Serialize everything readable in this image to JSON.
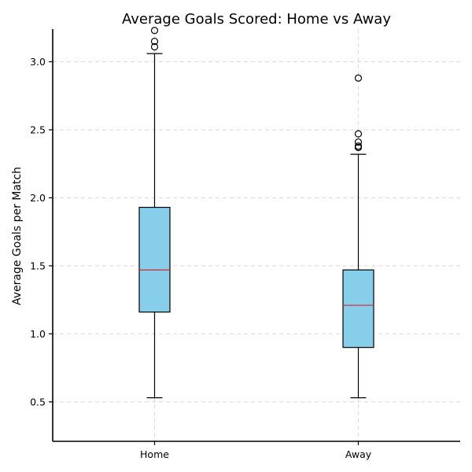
{
  "chart_data": {
    "type": "box",
    "title": "Average Goals Scored: Home vs Away",
    "xlabel": "",
    "ylabel": "Average Goals per Match",
    "ylim": [
      0.21,
      3.24
    ],
    "yticks": [
      0.5,
      1.0,
      1.5,
      2.0,
      2.5,
      3.0
    ],
    "ytick_labels": [
      "0.5",
      "1.0",
      "1.5",
      "2.0",
      "2.5",
      "3.0"
    ],
    "grid": true,
    "categories": [
      "Home",
      "Away"
    ],
    "boxes": [
      {
        "category": "Home",
        "whisker_low": 0.53,
        "q1": 1.16,
        "median": 1.47,
        "q3": 1.93,
        "whisker_high": 3.06,
        "outliers": [
          3.11,
          3.15,
          3.23
        ]
      },
      {
        "category": "Away",
        "whisker_low": 0.53,
        "q1": 0.9,
        "median": 1.21,
        "q3": 1.47,
        "whisker_high": 2.32,
        "outliers": [
          2.37,
          2.38,
          2.41,
          2.47,
          2.88
        ]
      }
    ],
    "colors": {
      "box_fill": "#87ceeb",
      "median_line": "#d62728",
      "grid": "#d9d9d9"
    }
  }
}
